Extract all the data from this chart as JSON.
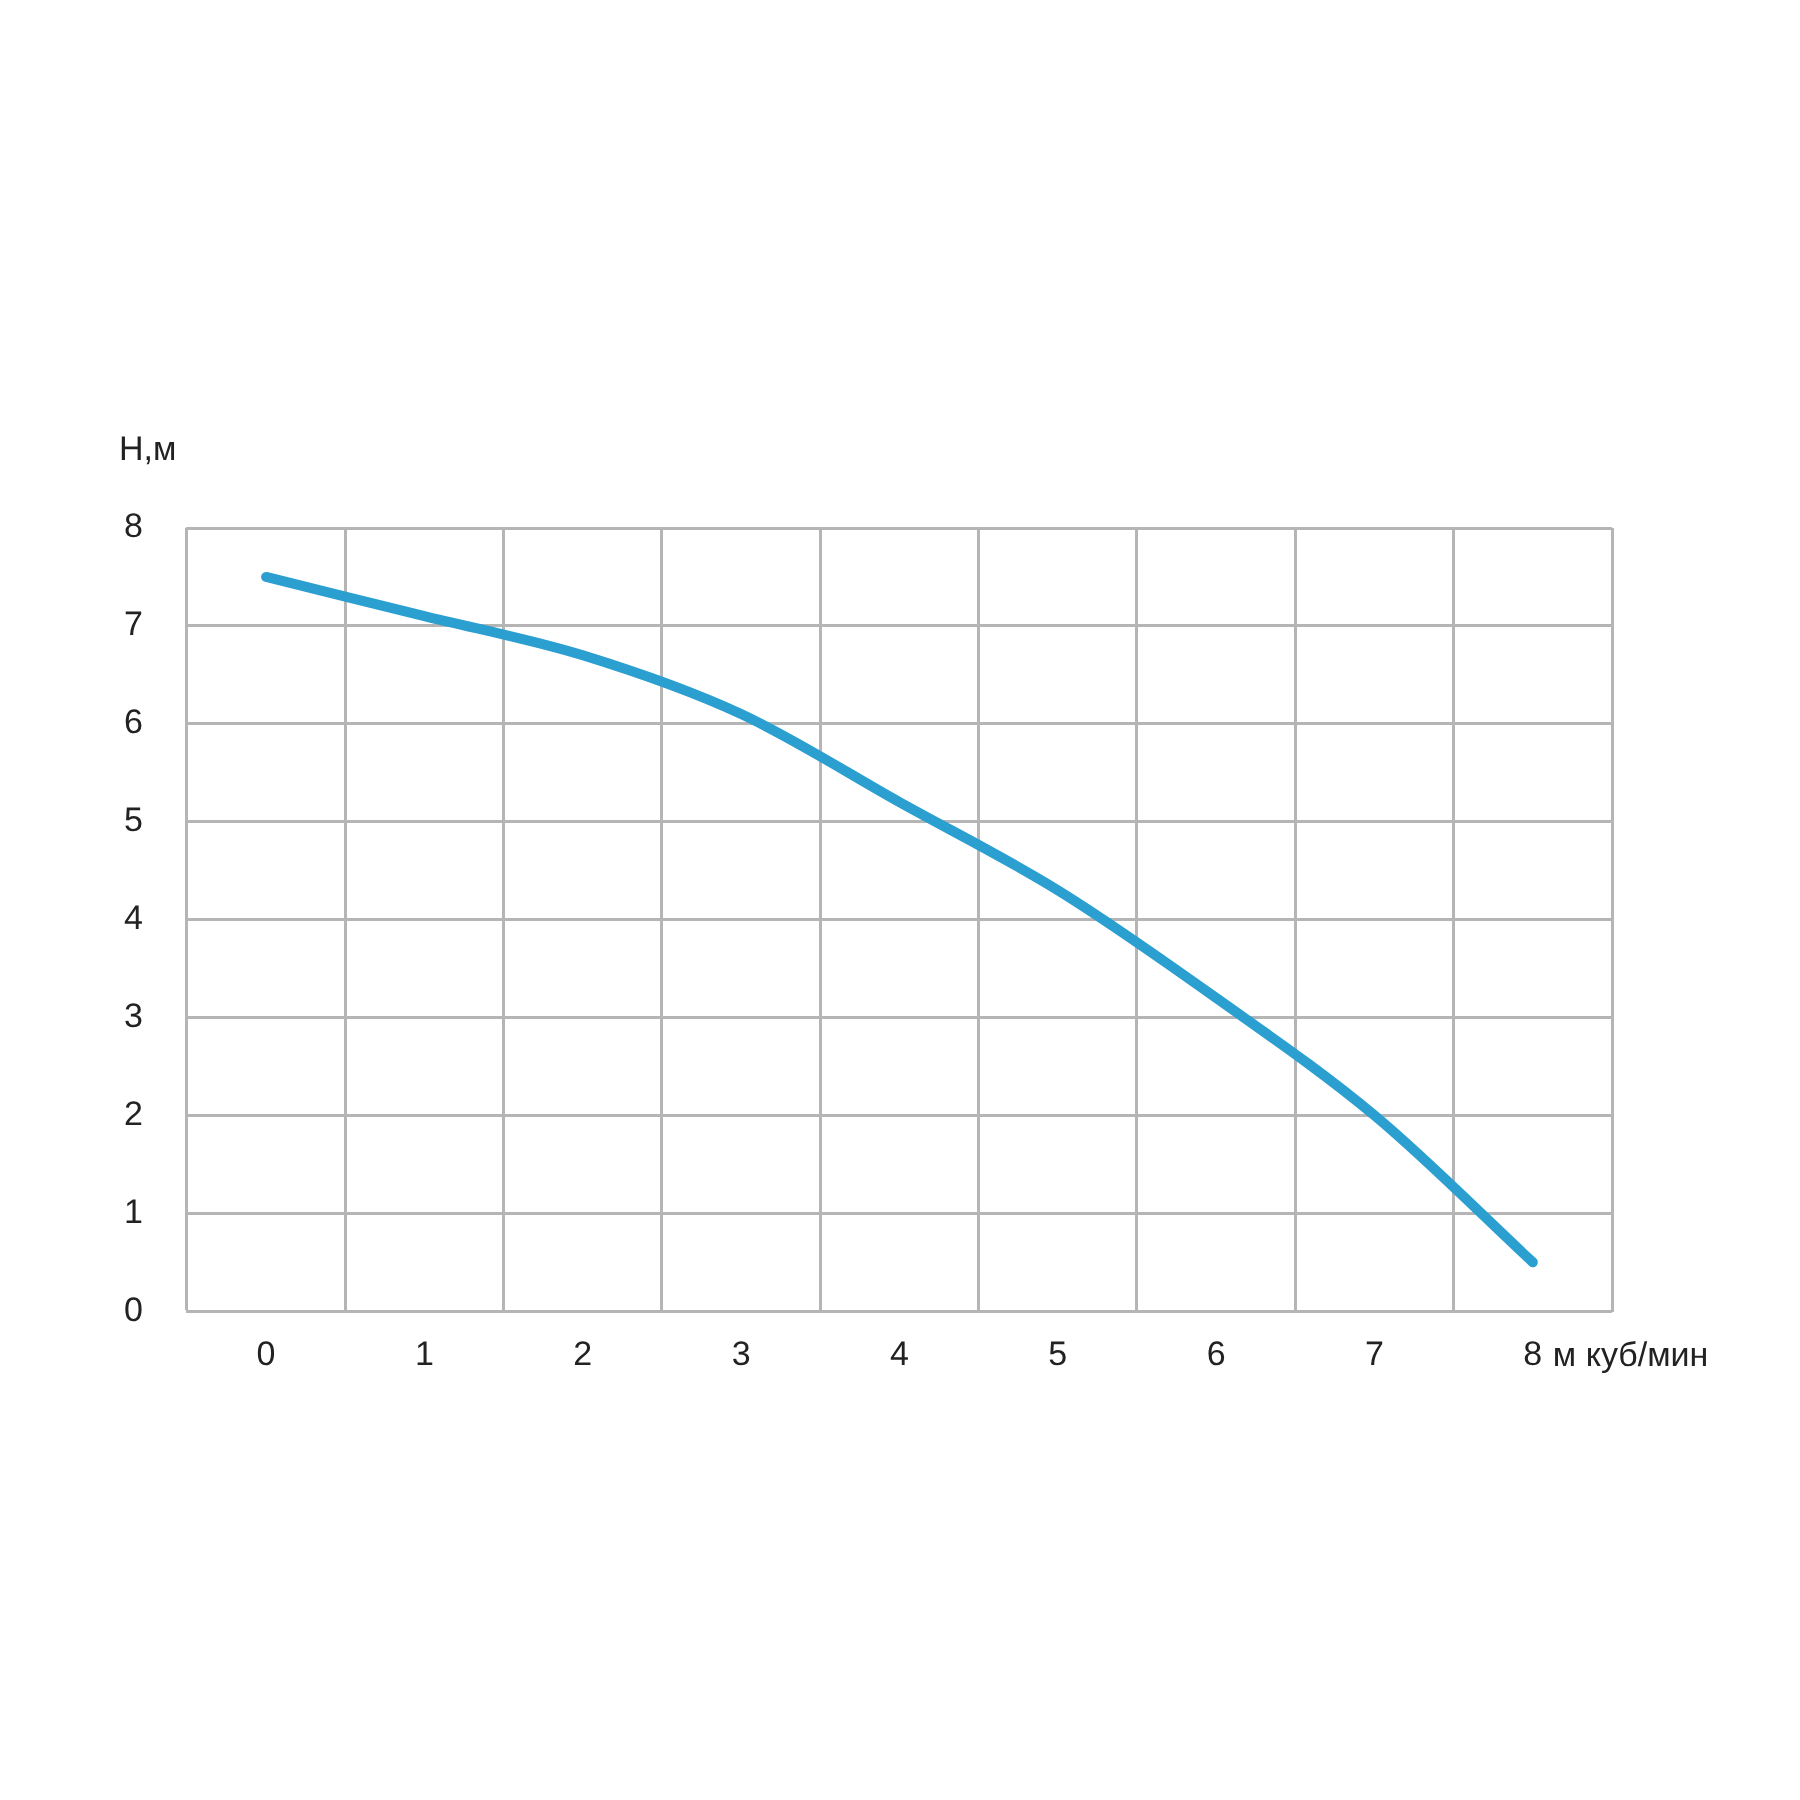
{
  "chart_data": {
    "type": "line",
    "xlabel": "м куб/мин",
    "ylabel": "Н,м",
    "categories": [
      "0",
      "1",
      "2",
      "3",
      "4",
      "5",
      "6",
      "7",
      "8"
    ],
    "series": [
      {
        "color": "#2a9fd0",
        "values": [
          7.5,
          7.1,
          6.7,
          6.1,
          5.2,
          4.3,
          3.2,
          2.0,
          0.5
        ]
      }
    ],
    "ylim": [
      0,
      8
    ],
    "yticks": [
      0,
      1,
      2,
      3,
      4,
      5,
      6,
      7,
      8
    ],
    "grid": true,
    "legend": false,
    "marker": "none",
    "line_style": "solid"
  }
}
